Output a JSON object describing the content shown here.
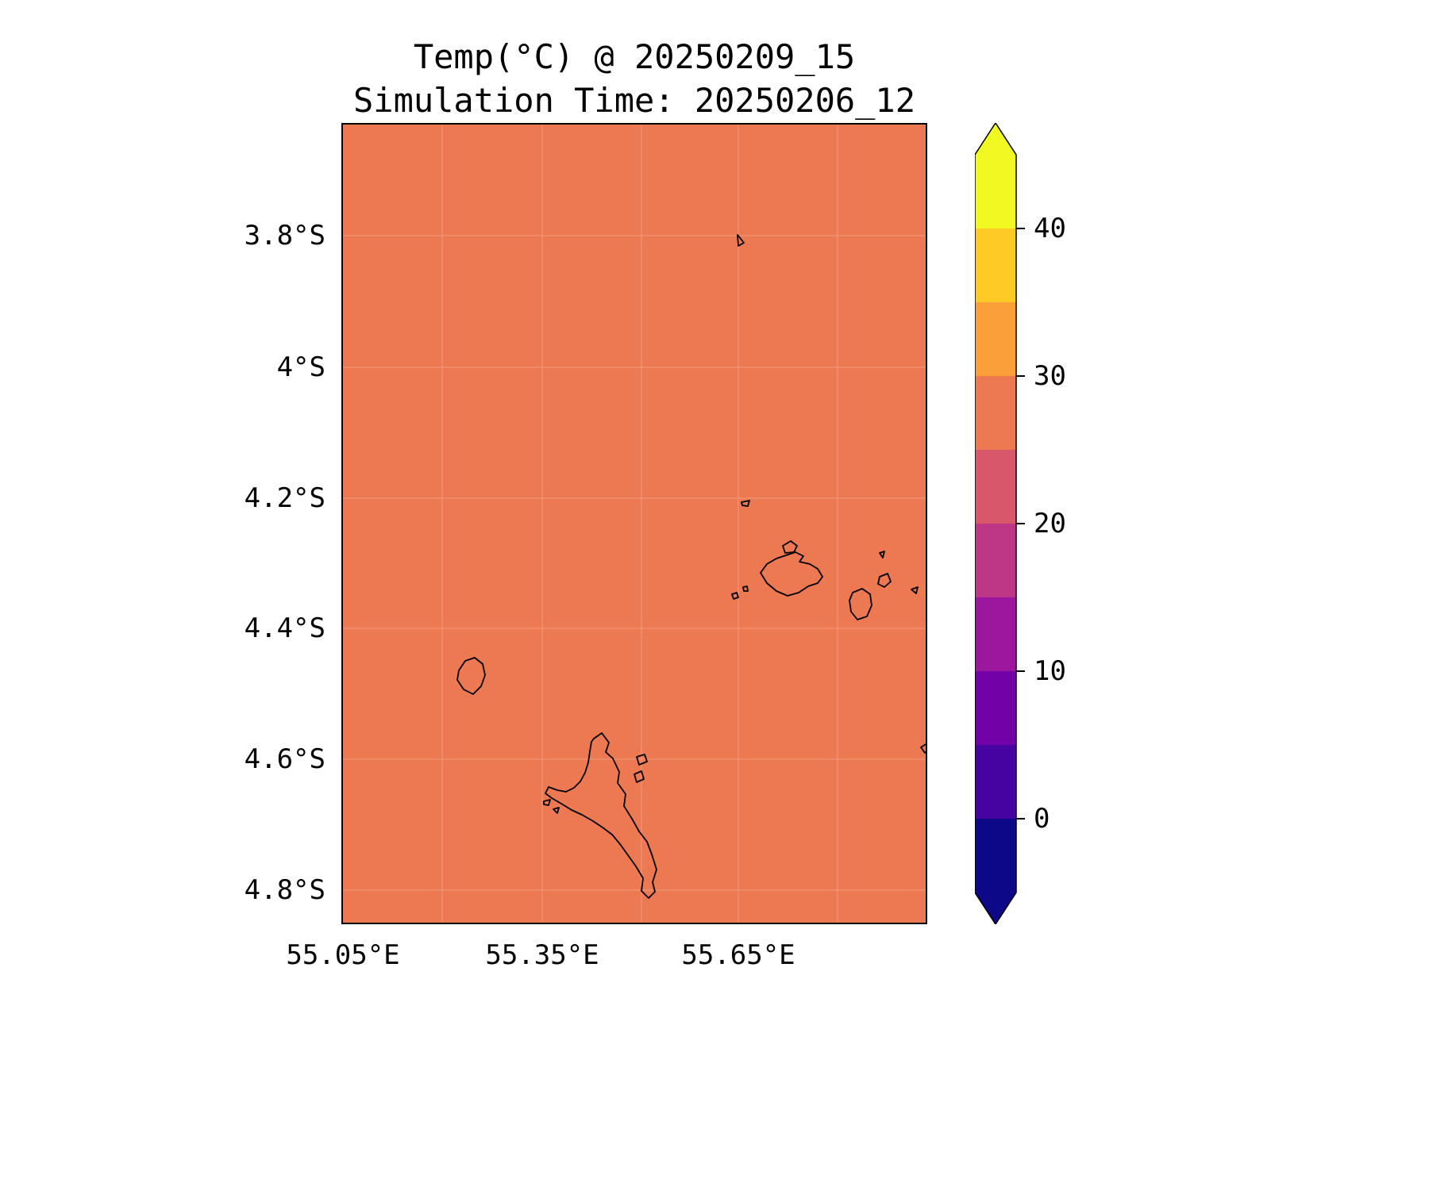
{
  "figure": {
    "title_line1": "Temp(°C) @ 20250209_15",
    "title_line2": "Simulation Time: 20250206_12"
  },
  "axes": {
    "y_tick_labels": [
      "3.8°S",
      "4°S",
      "4.2°S",
      "4.4°S",
      "4.6°S",
      "4.8°S"
    ],
    "x_tick_labels": [
      "55.05°E",
      "55.35°E",
      "55.65°E"
    ]
  },
  "colorbar": {
    "tick_labels": [
      "40",
      "30",
      "20",
      "10",
      "0"
    ],
    "band_colors_bottom_to_top": [
      "#0d0887",
      "#46039f",
      "#7201a8",
      "#9c179e",
      "#bd3786",
      "#d8576b",
      "#ed7953",
      "#fb9f3a",
      "#fdca26",
      "#f0f921"
    ],
    "arrow_top_color": "#f0f921",
    "arrow_bottom_color": "#0d0887"
  },
  "map": {
    "fill_color": "#ed7953",
    "coastline_color": "#000000",
    "gridline_color": "#ffffff"
  },
  "chart_data": {
    "type": "heatmap",
    "title": "Temp(°C) @ 20250209_15",
    "subtitle": "Simulation Time: 20250206_12",
    "variable": "Temp",
    "units": "°C",
    "valid_time": "20250209_15",
    "simulation_time": "20250206_12",
    "x_ticks": [
      "55.05°E",
      "55.35°E",
      "55.65°E"
    ],
    "y_ticks": [
      "3.8°S",
      "4°S",
      "4.2°S",
      "4.4°S",
      "4.6°S",
      "4.8°S"
    ],
    "x_range_deg_e": [
      55.05,
      55.93
    ],
    "y_range_deg_s": [
      3.63,
      4.85
    ],
    "field_summary": "Spatially uniform temperature across the whole domain; every cell falls in the 25-30 °C color band (≈28 °C), rendered as a single salmon color.",
    "colorbar": {
      "ticks": [
        0,
        10,
        20,
        30,
        40
      ],
      "level_range": [
        -5,
        45
      ],
      "level_step": 5,
      "extend": "both",
      "colormap": "plasma (discrete, 10 bands)",
      "colormap_colors_bottom_to_top": [
        "#0d0887",
        "#46039f",
        "#7201a8",
        "#9c179e",
        "#bd3786",
        "#d8576b",
        "#ed7953",
        "#fb9f3a",
        "#fdca26",
        "#f0f921"
      ]
    },
    "overlays": [
      "black coastline outlines of an island group (large island bottom-center, medium islands mid-right, small island mid-left, assorted islets)"
    ],
    "grid": true,
    "legend": false
  }
}
